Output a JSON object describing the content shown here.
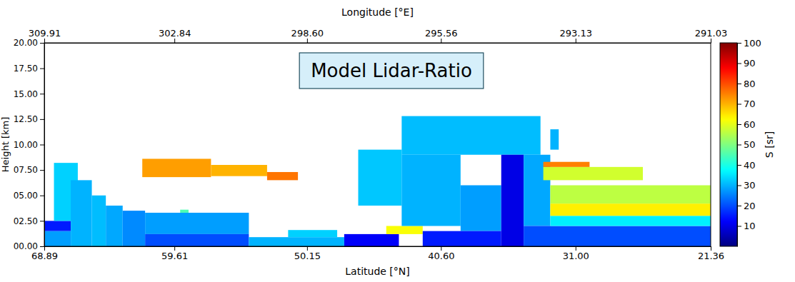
{
  "chart_data": {
    "type": "heatmap",
    "title": "Model Lidar-Ratio",
    "x_label": "Latitude  [°N]",
    "x2_label": "Longitude  [°E]",
    "y_label": "Height [km]",
    "colorbar_label": "S [sr]",
    "xlim": [
      68.89,
      21.36
    ],
    "xticks": [
      68.89,
      59.61,
      50.15,
      {
        "value": 40.6,
        "label": "40.60"
      },
      {
        "value": 31,
        "label": "31.00"
      },
      21.36
    ],
    "x2ticks": [
      309.91,
      302.84,
      {
        "value": 298.6,
        "label": "298.60"
      },
      295.56,
      293.13,
      291.03
    ],
    "ylim": [
      0,
      20
    ],
    "yticks": [
      {
        "value": 0,
        "label": "00.00"
      },
      {
        "value": 2.5,
        "label": "02.50"
      },
      {
        "value": 5,
        "label": "05.00"
      },
      {
        "value": 7.5,
        "label": "07.50"
      },
      {
        "value": 10,
        "label": "10.00"
      },
      {
        "value": 12.5,
        "label": "12.50"
      },
      {
        "value": 15,
        "label": "15.00"
      },
      {
        "value": 17.5,
        "label": "17.50"
      },
      {
        "value": 20,
        "label": "20.00"
      }
    ],
    "clim": [
      0,
      100
    ],
    "cticks": [
      10,
      20,
      30,
      40,
      50,
      60,
      70,
      80,
      90,
      100
    ],
    "cells": [
      [
        68.89,
        67.0,
        0.0,
        1.5,
        28
      ],
      [
        68.89,
        67.0,
        1.5,
        2.5,
        15
      ],
      [
        68.2,
        66.5,
        2.5,
        8.2,
        33
      ],
      [
        67.0,
        65.5,
        0.0,
        6.5,
        30
      ],
      [
        65.5,
        64.5,
        0.0,
        5.0,
        31
      ],
      [
        64.5,
        63.3,
        0.0,
        4.0,
        29
      ],
      [
        63.3,
        61.7,
        0.0,
        3.5,
        26
      ],
      [
        61.7,
        54.3,
        1.2,
        3.3,
        28
      ],
      [
        61.7,
        54.3,
        0.0,
        1.2,
        20
      ],
      [
        59.2,
        58.6,
        3.3,
        3.6,
        45
      ],
      [
        61.9,
        57.0,
        6.8,
        8.6,
        72
      ],
      [
        57.0,
        53.0,
        6.9,
        8.0,
        70
      ],
      [
        53.0,
        50.8,
        6.5,
        7.3,
        76
      ],
      [
        54.3,
        47.5,
        0.0,
        0.9,
        30
      ],
      [
        51.5,
        48.0,
        0.9,
        1.6,
        33
      ],
      [
        47.5,
        43.6,
        0.0,
        1.2,
        12
      ],
      [
        44.5,
        41.9,
        1.2,
        2.0,
        62
      ],
      [
        46.5,
        43.4,
        4.0,
        9.5,
        32
      ],
      [
        43.4,
        33.5,
        9.0,
        12.8,
        31
      ],
      [
        43.4,
        39.2,
        2.0,
        9.0,
        30
      ],
      [
        39.2,
        36.3,
        1.5,
        6.0,
        28
      ],
      [
        41.9,
        36.3,
        0.0,
        1.5,
        15
      ],
      [
        36.3,
        34.7,
        0.0,
        9.0,
        10
      ],
      [
        34.7,
        32.8,
        2.0,
        9.0,
        29
      ],
      [
        32.8,
        32.2,
        9.5,
        11.5,
        30
      ],
      [
        34.7,
        21.36,
        0.0,
        2.0,
        20
      ],
      [
        32.8,
        21.36,
        2.0,
        3.0,
        36
      ],
      [
        32.8,
        21.36,
        3.0,
        4.2,
        64
      ],
      [
        32.8,
        21.36,
        4.2,
        6.0,
        56
      ],
      [
        33.3,
        26.2,
        6.5,
        7.8,
        58
      ],
      [
        33.3,
        30.0,
        7.8,
        8.3,
        75
      ]
    ]
  }
}
